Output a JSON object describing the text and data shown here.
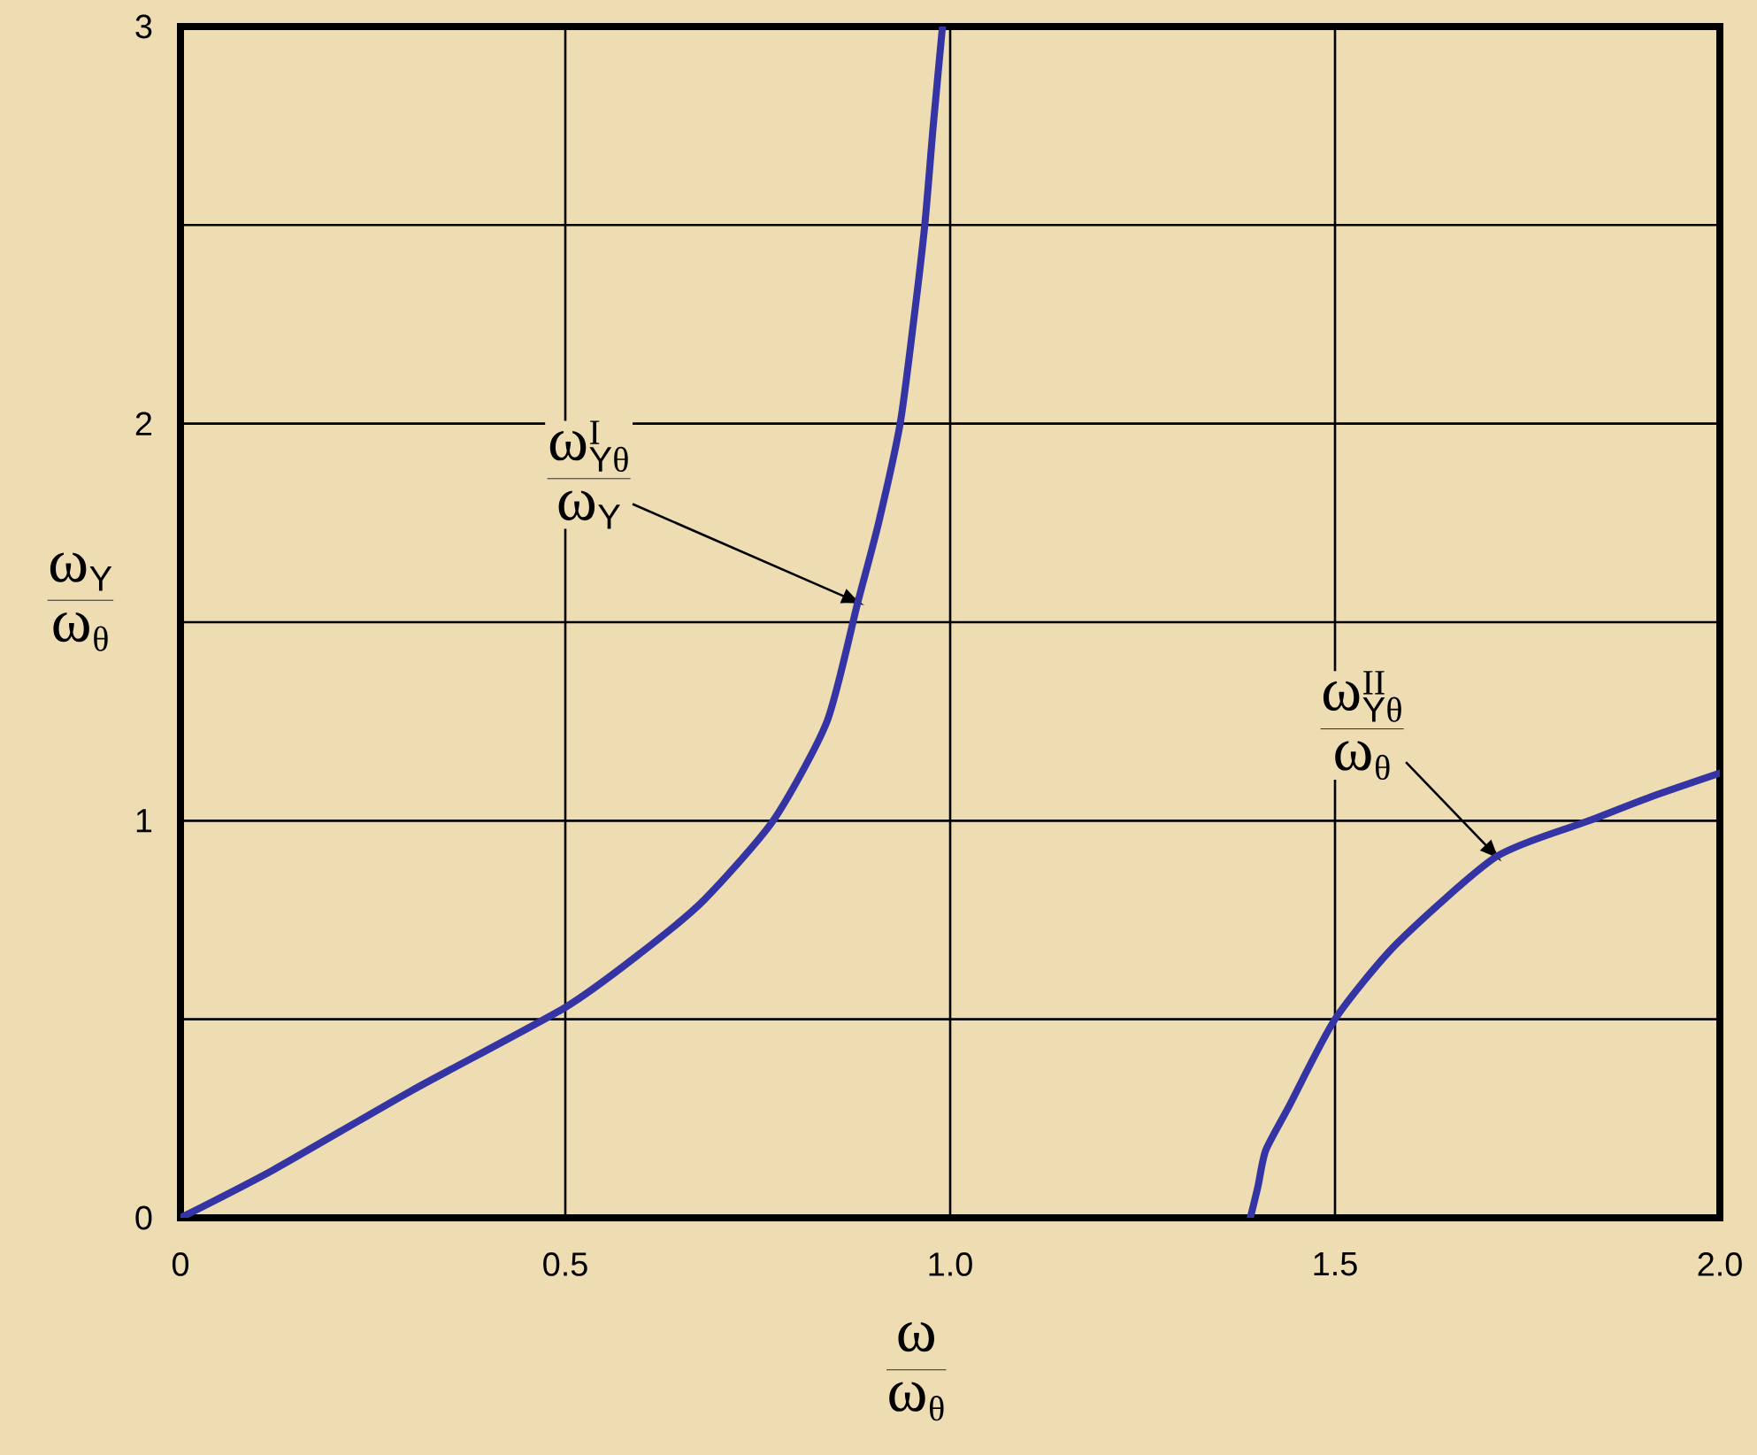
{
  "chart_data": {
    "type": "line",
    "xlabel": "\\frac{\\omega}{\\omega_{\\theta}}",
    "ylabel": "\\frac{\\omega_{\\mathsf{Y}}}{\\omega_{\\theta}}",
    "xlim": [
      0,
      2
    ],
    "ylim": [
      0,
      3
    ],
    "xticks": [
      0,
      0.5,
      {
        "value": 1,
        "label": "1.0"
      },
      1.5,
      {
        "value": 2,
        "label": "2.0"
      }
    ],
    "yticks": [
      0,
      {
        "value": 0.5,
        "label": null
      },
      1,
      {
        "value": 1.5,
        "label": null
      },
      2,
      {
        "value": 2.5,
        "label": null
      },
      3
    ],
    "grid": true,
    "marker": "none",
    "line_style": "solid",
    "series": [
      {
        "color": "#3434a4",
        "x": [
          0,
          0.12,
          0.3,
          0.5,
          0.6,
          0.68,
          0.77,
          0.84,
          0.88,
          0.907,
          0.935,
          0.952,
          0.967,
          0.978,
          0.99
        ],
        "values": [
          0,
          0.12,
          0.32,
          0.53,
          0.67,
          0.8,
          1.0,
          1.25,
          1.55,
          1.75,
          2.0,
          2.25,
          2.5,
          2.75,
          3.0
        ]
      },
      {
        "color": "#3434a4",
        "x": [
          1.39,
          1.4,
          1.41,
          1.44,
          1.5,
          1.58,
          1.71,
          1.83,
          1.91,
          2.0
        ],
        "values": [
          0,
          0.08,
          0.17,
          0.28,
          0.5,
          0.69,
          0.91,
          1.0,
          1.06,
          1.12
        ]
      }
    ],
    "annotations": [
      {
        "text": "\\frac{\\omega_{\\mathsf{Y}\\theta}^{\\mathrm{I}}}{\\omega_{\\mathsf{Y}}}",
        "x": 0.88,
        "y": 1.55
      },
      {
        "text": "\\frac{\\omega_{\\mathsf{Y}\\theta}^{\\mathrm{II}}}{\\omega_{\\theta}}",
        "x": 1.71,
        "y": 0.91
      }
    ]
  }
}
